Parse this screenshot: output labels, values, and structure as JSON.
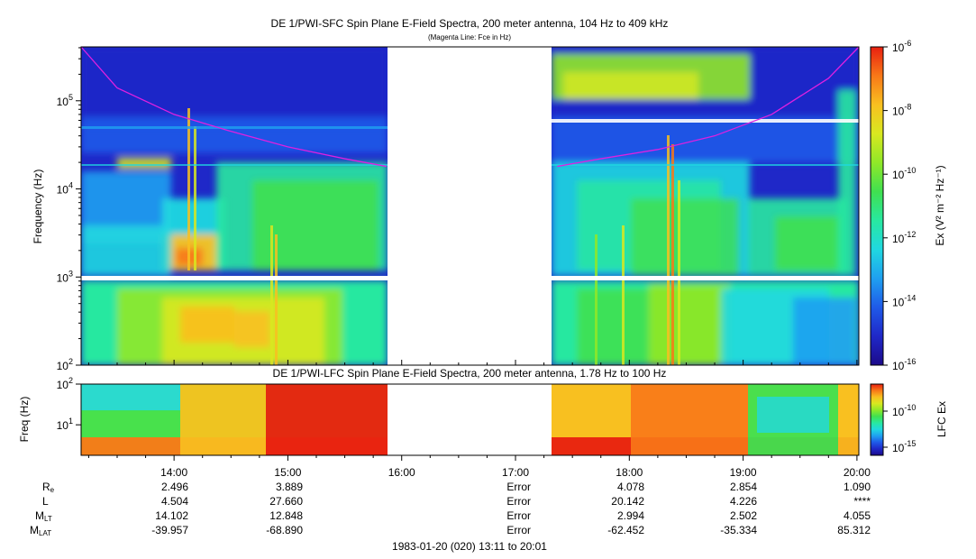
{
  "colors": {
    "scale": [
      "#1c0a8a",
      "#1f28c8",
      "#1f5ae8",
      "#1fa0f0",
      "#20d8e0",
      "#28e8a0",
      "#40e050",
      "#90e828",
      "#d8e820",
      "#f8c020",
      "#f87818",
      "#e82010"
    ],
    "fce_line": "#e020e0",
    "missing": "#ffffff",
    "gap_line": "#ffffff"
  },
  "sfc": {
    "title": "DE 1/PWI-SFC  Spin Plane E-Field Spectra, 200 meter antenna, 104 Hz to 409 kHz",
    "subtitle": "(Magenta Line: Fce in Hz)",
    "ylabel": "Frequency (Hz)",
    "yticks": [
      {
        "base": "10",
        "exp": "5"
      },
      {
        "base": "10",
        "exp": "4"
      },
      {
        "base": "10",
        "exp": "3"
      },
      {
        "base": "10",
        "exp": "2"
      }
    ],
    "colorbar_label": "Ex (V² m⁻² Hz⁻¹)",
    "colorbar_ticks": [
      {
        "base": "10",
        "exp": "-6"
      },
      {
        "base": "10",
        "exp": "-8"
      },
      {
        "base": "10",
        "exp": "-10"
      },
      {
        "base": "10",
        "exp": "-12"
      },
      {
        "base": "10",
        "exp": "-14"
      },
      {
        "base": "10",
        "exp": "-16"
      }
    ]
  },
  "lfc": {
    "title": "DE 1/PWI-LFC  Spin Plane E-Field Spectra, 200 meter antenna, 1.78 Hz to 100 Hz",
    "ylabel": "Freq (Hz)",
    "yticks": [
      {
        "base": "10",
        "exp": "2"
      },
      {
        "base": "10",
        "exp": "1"
      }
    ],
    "colorbar_label": "LFC Ex",
    "colorbar_ticks": [
      {
        "base": "10",
        "exp": "-10"
      },
      {
        "base": "10",
        "exp": "-15"
      }
    ]
  },
  "time_ticks": [
    "14:00",
    "15:00",
    "16:00",
    "17:00",
    "18:00",
    "19:00",
    "20:00"
  ],
  "ephemeris": {
    "rows": [
      {
        "label": "R",
        "sub": "e",
        "values": [
          "2.496",
          "3.889",
          "Error",
          "4.078",
          "2.854",
          "1.090"
        ]
      },
      {
        "label": "L",
        "sub": "",
        "values": [
          "4.504",
          "27.660",
          "Error",
          "20.142",
          "4.226",
          "****"
        ]
      },
      {
        "label": "M",
        "sub": "LT",
        "values": [
          "14.102",
          "12.848",
          "Error",
          "2.994",
          "2.502",
          "4.055"
        ]
      },
      {
        "label": "M",
        "sub": "LAT",
        "values": [
          "-39.957",
          "-68.890",
          "Error",
          "-62.452",
          "-35.334",
          "85.312"
        ]
      }
    ]
  },
  "footer": "1983-01-20 (020) 13:11 to 20:01",
  "chart_data": [
    {
      "type": "heatmap",
      "title": "DE 1/PWI-SFC  Spin Plane E-Field Spectra, 200 meter antenna, 104 Hz to 409 kHz",
      "subtitle": "(Magenta Line: Fce in Hz)",
      "xlabel": "",
      "ylabel": "Frequency (Hz)",
      "y_scale": "log",
      "ylim": [
        100,
        409000
      ],
      "xlim": [
        "13:11",
        "20:01"
      ],
      "x_ticks": [
        "14:00",
        "15:00",
        "16:00",
        "17:00",
        "18:00",
        "19:00",
        "20:00"
      ],
      "colorbar": {
        "label": "Ex (V^2 m^-2 Hz^-1)",
        "scale": "log",
        "range": [
          1e-16,
          1e-06
        ]
      },
      "data_gap": [
        "15:52",
        "17:22"
      ],
      "fce_line": {
        "name": "Fce",
        "time": [
          "13:11",
          "13:30",
          "14:00",
          "14:30",
          "15:00",
          "15:30",
          "15:52",
          "17:22",
          "17:45",
          "18:15",
          "18:45",
          "19:15",
          "19:45",
          "20:01"
        ],
        "hz": [
          409000,
          140000,
          70000,
          45000,
          30000,
          22000,
          18000,
          18000,
          22000,
          28000,
          40000,
          70000,
          180000,
          409000
        ]
      }
    },
    {
      "type": "heatmap",
      "title": "DE 1/PWI-LFC  Spin Plane E-Field Spectra, 200 meter antenna, 1.78 Hz to 100 Hz",
      "xlabel": "",
      "ylabel": "Freq (Hz)",
      "y_scale": "log",
      "ylim": [
        1.78,
        100
      ],
      "xlim": [
        "13:11",
        "20:01"
      ],
      "x_ticks": [
        "14:00",
        "15:00",
        "16:00",
        "17:00",
        "18:00",
        "19:00",
        "20:00"
      ],
      "colorbar": {
        "label": "LFC Ex",
        "scale": "log"
      },
      "data_gap": [
        "15:52",
        "17:22"
      ]
    }
  ]
}
